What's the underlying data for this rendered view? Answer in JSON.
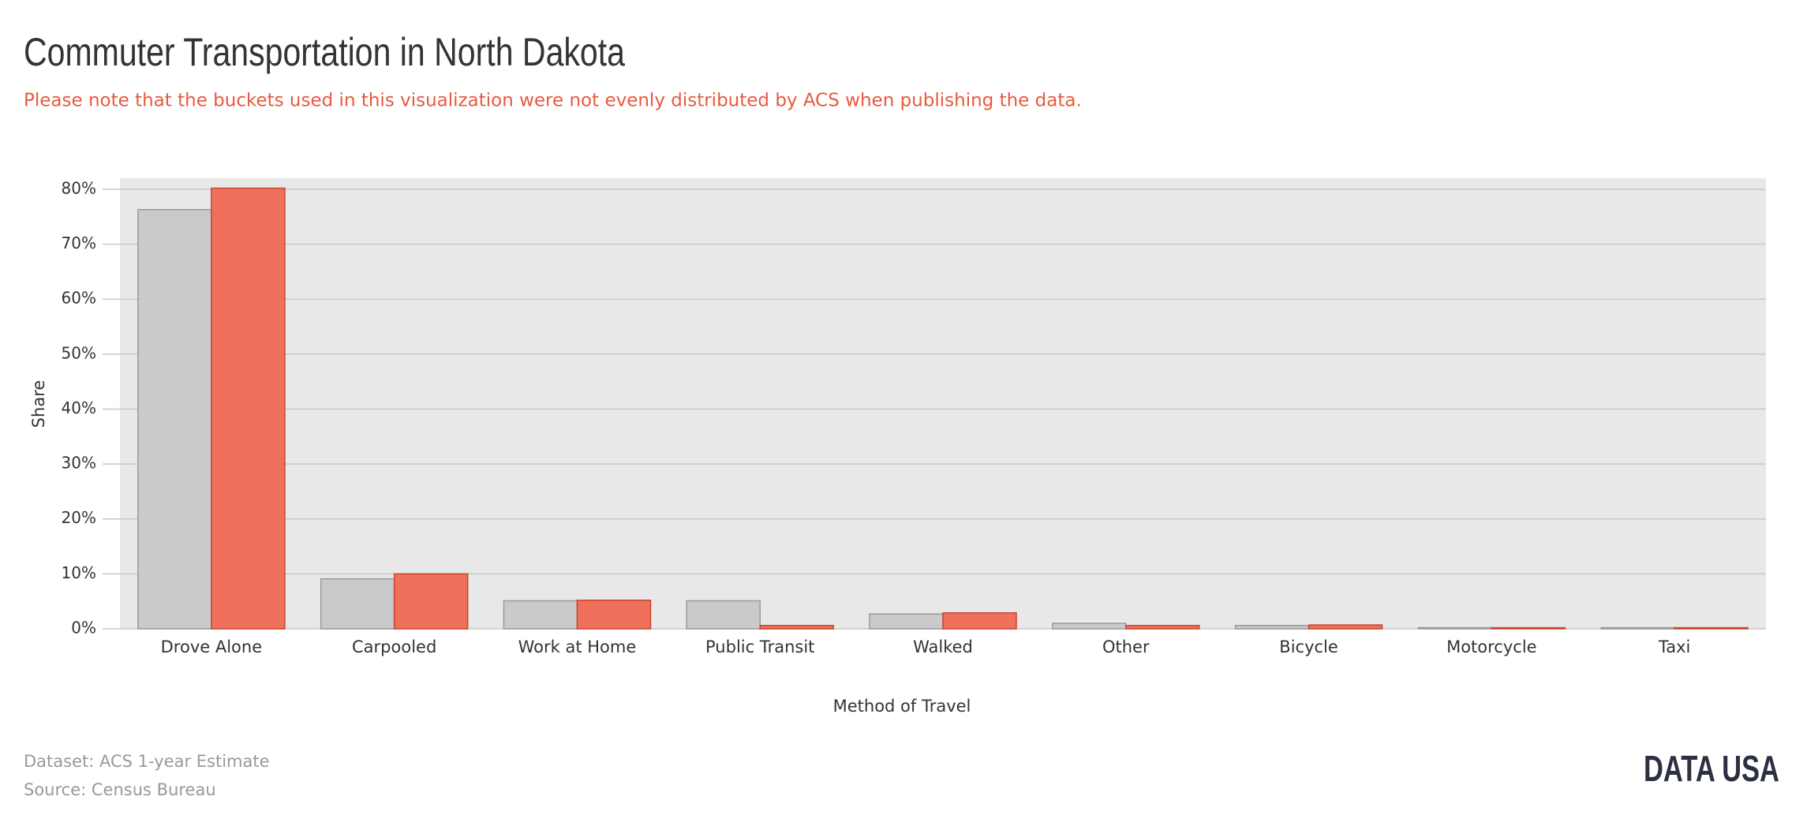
{
  "chart_data": {
    "type": "bar",
    "title": "Commuter Transportation in North Dakota",
    "subtitle": "Please note that the buckets used in this visualization were not evenly distributed by ACS when publishing the data.",
    "x_label": "Method of Travel",
    "y_label": "Share",
    "dataset": "Dataset: ACS 1-year Estimate",
    "source": "Source: Census Bureau",
    "logo": "DATA USA",
    "categories": [
      "Drove Alone",
      "Carpooled",
      "Work at Home",
      "Public Transit",
      "Walked",
      "Other",
      "Bicycle",
      "Motorcycle",
      "Taxi"
    ],
    "series": [
      {
        "color": "#c8c8cb",
        "values": [
          76.3,
          9.1,
          5.1,
          5.1,
          2.7,
          1.0,
          0.6,
          0.2,
          0.2
        ]
      },
      {
        "color": "#ef6a53",
        "values": [
          80.2,
          10.0,
          5.2,
          0.6,
          2.9,
          0.6,
          0.7,
          0.2,
          0.2
        ]
      }
    ],
    "ylim": [
      0,
      82
    ],
    "yticks": [
      {
        "value": 0,
        "label": "0%"
      },
      {
        "value": 10,
        "label": "10%"
      },
      {
        "value": 20,
        "label": "20%"
      },
      {
        "value": 30,
        "label": "30%"
      },
      {
        "value": 40,
        "label": "40%"
      },
      {
        "value": 50,
        "label": "50%"
      },
      {
        "value": 60,
        "label": "60%"
      },
      {
        "value": 70,
        "label": "70%"
      },
      {
        "value": 80,
        "label": "80%"
      }
    ],
    "grid": true
  }
}
